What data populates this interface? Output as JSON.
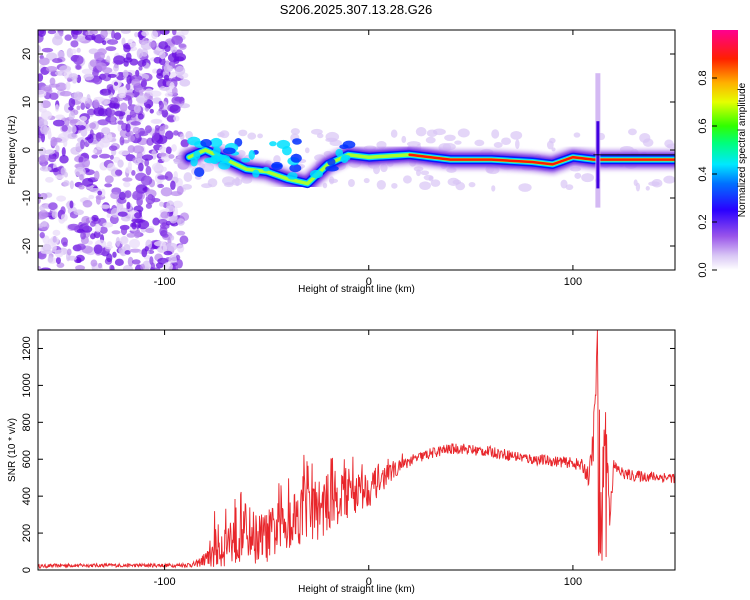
{
  "title": "S206.2025.307.13.28.G26",
  "chart_data": [
    {
      "type": "heatmap",
      "title": "S206.2025.307.13.28.G26",
      "xlabel": "Height of straight line (km)",
      "ylabel": "Frequency (Hz)",
      "xlim": [
        -162,
        150
      ],
      "ylim": [
        -25,
        25
      ],
      "xticks": [
        -100,
        0,
        100
      ],
      "yticks": [
        -20,
        -10,
        0,
        10,
        20
      ],
      "colorbar": {
        "label": "Normalized spectral amplitude",
        "range": [
          0,
          1
        ],
        "ticks": [
          0.0,
          0.2,
          0.4,
          0.6,
          0.8
        ],
        "colors": [
          "#ffffff",
          "#c9a8f0",
          "#7a1fe0",
          "#0000ff",
          "#00e5ff",
          "#00ff40",
          "#ffff00",
          "#ff8000",
          "#ff0000",
          "#ff0080"
        ]
      },
      "ridge": [
        {
          "x": -88,
          "y": -1.5
        },
        {
          "x": -80,
          "y": 0
        },
        {
          "x": -70,
          "y": -2
        },
        {
          "x": -60,
          "y": -4
        },
        {
          "x": -50,
          "y": -4.5
        },
        {
          "x": -40,
          "y": -6
        },
        {
          "x": -30,
          "y": -7
        },
        {
          "x": -20,
          "y": -3
        },
        {
          "x": -10,
          "y": -1
        },
        {
          "x": 0,
          "y": -1.5
        },
        {
          "x": 20,
          "y": -1
        },
        {
          "x": 40,
          "y": -2
        },
        {
          "x": 60,
          "y": -2
        },
        {
          "x": 80,
          "y": -2.5
        },
        {
          "x": 90,
          "y": -3
        },
        {
          "x": 100,
          "y": -1.5
        },
        {
          "x": 110,
          "y": -2
        },
        {
          "x": 120,
          "y": -2
        },
        {
          "x": 150,
          "y": -2
        }
      ]
    },
    {
      "type": "line",
      "xlabel": "Height of straight line (km)",
      "ylabel": "SNR (10 * v/v)",
      "xlim": [
        -162,
        150
      ],
      "ylim": [
        0,
        1300
      ],
      "xticks": [
        -100,
        0,
        100
      ],
      "yticks": [
        0,
        200,
        400,
        600,
        800,
        1000,
        1200
      ],
      "series": [
        {
          "name": "SNR",
          "color": "#e8262b",
          "x": [
            -162,
            -150,
            -130,
            -110,
            -95,
            -85,
            -80,
            -75,
            -70,
            -65,
            -60,
            -55,
            -50,
            -45,
            -40,
            -35,
            -30,
            -25,
            -20,
            -15,
            -10,
            -5,
            0,
            5,
            10,
            15,
            20,
            25,
            30,
            35,
            40,
            45,
            50,
            55,
            60,
            70,
            80,
            90,
            100,
            105,
            108,
            110,
            112,
            114,
            116,
            118,
            120,
            125,
            130,
            140,
            150
          ],
          "values": [
            20,
            25,
            25,
            25,
            25,
            30,
            60,
            120,
            150,
            190,
            220,
            170,
            180,
            220,
            260,
            300,
            320,
            330,
            360,
            400,
            420,
            430,
            440,
            480,
            520,
            560,
            590,
            610,
            630,
            645,
            655,
            660,
            650,
            645,
            640,
            620,
            600,
            590,
            580,
            560,
            500,
            700,
            1180,
            300,
            820,
            320,
            560,
            520,
            510,
            505,
            500
          ],
          "noise_amplitude": [
            10,
            10,
            10,
            10,
            10,
            15,
            40,
            120,
            130,
            160,
            150,
            140,
            140,
            150,
            160,
            170,
            170,
            170,
            160,
            150,
            140,
            120,
            100,
            80,
            50,
            35,
            30,
            30,
            30,
            30,
            30,
            30,
            30,
            30,
            30,
            30,
            30,
            30,
            30,
            40,
            60,
            120,
            100,
            200,
            160,
            100,
            40,
            30,
            30,
            30,
            30
          ]
        }
      ]
    }
  ]
}
